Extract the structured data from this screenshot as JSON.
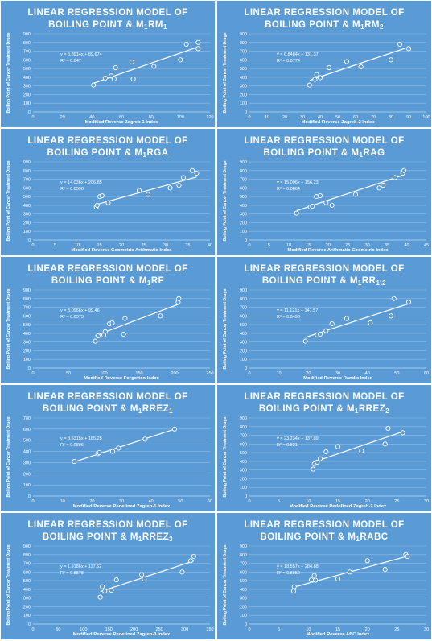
{
  "charts": [
    {
      "title_line1": "LINEAR REGRESSION MODEL OF",
      "title_prefix": "BOILING POINT & M",
      "title_sub1": "1",
      "title_mid": "RM",
      "title_sub2": "1",
      "equation": "y = 5.8914x + 89.674",
      "r2": "R² = 0.847"
    },
    {
      "title_line1": "LINEAR REGRESSION MODEL OF",
      "title_prefix": "BOILING POINT & M",
      "title_sub1": "1",
      "title_mid": "RM",
      "title_sub2": "2",
      "equation": "y = 6.8484x + 131.37",
      "r2": "R² = 0.8774"
    },
    {
      "title_line1": "LINEAR REGRESSION MODEL OF",
      "title_prefix": "BOILING POINT & M",
      "title_sub1": "1",
      "title_mid": "RGA",
      "title_sub2": "",
      "equation": "y = 14.036x + 206.85",
      "r2": "R² = 0.8598"
    },
    {
      "title_line1": "LINEAR REGRESSION MODEL OF",
      "title_prefix": "BOILING POINT & M",
      "title_sub1": "1",
      "title_mid": "RAG",
      "title_sub2": "",
      "equation": "y = 15.096x + 156.23",
      "r2": "R² = 0.8864"
    },
    {
      "title_line1": "LINEAR REGRESSION MODEL OF",
      "title_prefix": "BOILING POINT & M",
      "title_sub1": "1",
      "title_mid": "RF",
      "title_sub2": "",
      "equation": "y = 3.0966x + 99.46",
      "r2": "R² = 0.8373"
    },
    {
      "title_line1": "LINEAR REGRESSION MODEL OF",
      "title_prefix": "BOILING POINT & M",
      "title_sub1": "1",
      "title_mid": "RR",
      "title_sub2": "1\\2",
      "equation": "y = 11.121x + 141.57",
      "r2": "R² = 0.8493"
    },
    {
      "title_line1": "LINEAR REGRESSION MODEL OF",
      "title_prefix": "BOILING POINT & M",
      "title_sub1": "1",
      "title_mid": "RREZ",
      "title_sub2": "1",
      "equation": "y = 8.6315x + 185.25",
      "r2": "R² = 0.9806"
    },
    {
      "title_line1": "LINEAR REGRESSION MODEL OF",
      "title_prefix": "BOILING POINT & M",
      "title_sub1": "1",
      "title_mid": "RREZ",
      "title_sub2": "2",
      "equation": "y = 23.234x + 137.89",
      "r2": "R² = 0.821"
    },
    {
      "title_line1": "LINEAR REGRESSION MODEL OF",
      "title_prefix": "BOILING POINT & M",
      "title_sub1": "1",
      "title_mid": "RREZ",
      "title_sub2": "3",
      "equation": "y = 1.9186x + 117.62",
      "r2": "R² = 0.8878"
    },
    {
      "title_line1": "LINEAR REGRESSION MODEL OF",
      "title_prefix": "BOILING POINT & M",
      "title_sub1": "1",
      "title_mid": "RABC",
      "title_sub2": "",
      "equation": "y = 18.557x + 284.88",
      "r2": "R² = 0.8852"
    }
  ],
  "colors": {
    "panel_bg": "#5b9bd5",
    "foreground": "#ffffff"
  },
  "chart_data": [
    {
      "type": "scatter",
      "title": "LINEAR REGRESSION MODEL OF BOILING POINT & M1RM1",
      "xlabel": "Modified Reverse Zagreb-1 Index",
      "ylabel": "Boiling Point of Cancer Treatment Drugs",
      "xlim": [
        0,
        120
      ],
      "ylim": [
        0,
        900
      ],
      "xticks": [
        0,
        20,
        40,
        60,
        80,
        100,
        120
      ],
      "yticks": [
        0,
        100,
        200,
        300,
        400,
        500,
        600,
        700,
        800,
        900
      ],
      "x": [
        41,
        49,
        53,
        55,
        56,
        67,
        68,
        82,
        100,
        104,
        112,
        112
      ],
      "y": [
        310,
        390,
        415,
        380,
        510,
        575,
        380,
        525,
        600,
        780,
        800,
        730
      ],
      "trendline": {
        "slope": 5.8914,
        "intercept": 89.674
      }
    },
    {
      "type": "scatter",
      "title": "LINEAR REGRESSION MODEL OF BOILING POINT & M1RM2",
      "xlabel": "Modified Reverse Zagreb-2 Index",
      "ylabel": "Boiling Point of Cancer Treatment Drugs",
      "xlim": [
        0,
        100
      ],
      "ylim": [
        0,
        900
      ],
      "xticks": [
        0,
        10,
        20,
        30,
        40,
        50,
        60,
        70,
        80,
        90,
        100
      ],
      "yticks": [
        0,
        100,
        200,
        300,
        400,
        500,
        600,
        700,
        800,
        900
      ],
      "x": [
        34,
        37,
        38,
        40,
        45,
        55,
        63,
        80,
        85,
        90
      ],
      "y": [
        310,
        375,
        430,
        395,
        510,
        580,
        520,
        600,
        780,
        730
      ],
      "trendline": {
        "slope": 6.8484,
        "intercept": 131.37
      }
    },
    {
      "type": "scatter",
      "title": "LINEAR REGRESSION MODEL OF BOILING POINT & M1RGA",
      "xlabel": "Modified Reverse Geometric Arithmatic Index",
      "ylabel": "Boiling Point of Cancer Treatment Drugs",
      "xlim": [
        0,
        40
      ],
      "ylim": [
        0,
        900
      ],
      "xticks": [
        0,
        5,
        10,
        15,
        20,
        25,
        30,
        35,
        40
      ],
      "yticks": [
        0,
        100,
        200,
        300,
        400,
        500,
        600,
        700,
        800,
        900
      ],
      "x": [
        14.3,
        14.5,
        15.1,
        15.6,
        17,
        24,
        26,
        31,
        33,
        34,
        36,
        37
      ],
      "y": [
        380,
        400,
        500,
        510,
        430,
        570,
        525,
        600,
        630,
        720,
        800,
        770
      ],
      "trendline": {
        "slope": 14.036,
        "intercept": 206.85
      }
    },
    {
      "type": "scatter",
      "title": "LINEAR REGRESSION MODEL OF BOILING POINT & M1RAG",
      "xlabel": "Modified Reverse  Arithmatic Geometric Index",
      "ylabel": "Boiling Point of Cancer Treatment Drugs",
      "xlim": [
        0,
        45
      ],
      "ylim": [
        0,
        900
      ],
      "xticks": [
        0,
        5,
        10,
        15,
        20,
        25,
        30,
        35,
        40,
        45
      ],
      "yticks": [
        0,
        100,
        200,
        300,
        400,
        500,
        600,
        700,
        800,
        900
      ],
      "x": [
        12,
        15.5,
        16,
        17,
        18,
        19.5,
        21,
        27,
        33,
        34,
        37,
        39,
        39.3
      ],
      "y": [
        310,
        380,
        390,
        500,
        510,
        430,
        400,
        525,
        600,
        630,
        720,
        770,
        800
      ],
      "trendline": {
        "slope": 15.096,
        "intercept": 156.23
      }
    },
    {
      "type": "scatter",
      "title": "LINEAR REGRESSION MODEL OF BOILING POINT & M1RF",
      "xlabel": "Modified Reverse Forgotton Index",
      "ylabel": "Boiling Point of Cancer Treatment Drugs",
      "xlim": [
        0,
        250
      ],
      "ylim": [
        0,
        900
      ],
      "xticks": [
        0,
        50,
        100,
        150,
        200,
        250
      ],
      "yticks": [
        0,
        100,
        200,
        300,
        400,
        500,
        600,
        700,
        800,
        900
      ],
      "x": [
        88,
        92,
        100,
        102,
        108,
        112,
        128,
        130,
        180,
        205,
        206
      ],
      "y": [
        310,
        370,
        380,
        420,
        510,
        520,
        390,
        570,
        600,
        760,
        800
      ],
      "trendline": {
        "slope": 3.0966,
        "intercept": 99.46
      }
    },
    {
      "type": "scatter",
      "title": "LINEAR REGRESSION MODEL OF BOILING POINT & M1RR1\\2",
      "xlabel": "Modified Reverse Randic Index",
      "ylabel": "Boiling Point of Cancer Treatment Drugs",
      "xlim": [
        0,
        60
      ],
      "ylim": [
        0,
        900
      ],
      "xticks": [
        0,
        10,
        20,
        30,
        40,
        50,
        60
      ],
      "yticks": [
        0,
        100,
        200,
        300,
        400,
        500,
        600,
        700,
        800,
        900
      ],
      "x": [
        19,
        23,
        24,
        26,
        28,
        33,
        41,
        48,
        49,
        54
      ],
      "y": [
        310,
        380,
        390,
        430,
        510,
        570,
        520,
        600,
        800,
        760
      ],
      "trendline": {
        "slope": 11.121,
        "intercept": 141.57
      }
    },
    {
      "type": "scatter",
      "title": "LINEAR REGRESSION MODEL OF BOILING POINT & M1RREZ1",
      "xlabel": "Modified Reverse Redefined Zagreb-1 Index",
      "ylabel": "Boiling Point of Cancer Treatment Drugs",
      "xlim": [
        0,
        60
      ],
      "ylim": [
        0,
        700
      ],
      "xticks": [
        0,
        10,
        20,
        30,
        40,
        50,
        60
      ],
      "yticks": [
        0,
        100,
        200,
        300,
        400,
        500,
        600,
        700
      ],
      "x": [
        14,
        22,
        22.5,
        27,
        29,
        38,
        48
      ],
      "y": [
        310,
        380,
        390,
        400,
        430,
        510,
        600
      ],
      "trendline": {
        "slope": 8.6315,
        "intercept": 185.25
      }
    },
    {
      "type": "scatter",
      "title": "LINEAR REGRESSION MODEL OF BOILING POINT & M1RREZ2",
      "xlabel": "Modified Reverse Redefined Zagreb-2 Index",
      "ylabel": "Boiling Point of Cancer Treatment Drugs",
      "xlim": [
        0,
        30
      ],
      "ylim": [
        0,
        900
      ],
      "xticks": [
        0,
        5,
        10,
        15,
        20,
        25,
        30
      ],
      "yticks": [
        0,
        100,
        200,
        300,
        400,
        500,
        600,
        700,
        800,
        900
      ],
      "x": [
        10.8,
        11,
        11.5,
        12,
        13,
        15,
        19,
        23,
        23.5,
        26
      ],
      "y": [
        310,
        370,
        390,
        430,
        510,
        570,
        520,
        600,
        780,
        730
      ],
      "trendline": {
        "slope": 23.234,
        "intercept": 137.89
      }
    },
    {
      "type": "scatter",
      "title": "LINEAR REGRESSION MODEL OF BOILING POINT & M1RREZ3",
      "xlabel": "Modified Reverse Redefined Zagreb-3 Index",
      "ylabel": "Boiling Point of Cancer Treatment Drugs",
      "xlim": [
        0,
        350
      ],
      "ylim": [
        0,
        900
      ],
      "xticks": [
        0,
        50,
        100,
        150,
        200,
        250,
        300,
        350
      ],
      "yticks": [
        0,
        100,
        200,
        300,
        400,
        500,
        600,
        700,
        800,
        900
      ],
      "x": [
        133,
        137,
        142,
        155,
        165,
        215,
        220,
        295,
        312,
        318
      ],
      "y": [
        310,
        430,
        380,
        390,
        510,
        570,
        520,
        600,
        730,
        780
      ],
      "trendline": {
        "slope": 1.9186,
        "intercept": 117.62
      }
    },
    {
      "type": "scatter",
      "title": "LINEAR REGRESSION MODEL OF BOILING POINT & M1RABC",
      "xlabel": "Modified Reverse ABC Index",
      "ylabel": "Boiling Point of Cancer Treatment Drugs",
      "xlim": [
        0,
        30
      ],
      "ylim": [
        0,
        900
      ],
      "xticks": [
        0,
        5,
        10,
        15,
        20,
        25,
        30
      ],
      "yticks": [
        0,
        100,
        200,
        300,
        400,
        500,
        600,
        700,
        800,
        900
      ],
      "x": [
        7.5,
        7.6,
        10.5,
        11,
        11.2,
        15,
        17,
        20,
        23,
        26.5,
        26.8
      ],
      "y": [
        380,
        430,
        510,
        560,
        505,
        520,
        600,
        730,
        630,
        800,
        780
      ],
      "trendline": {
        "slope": 18.557,
        "intercept": 284.88
      }
    }
  ]
}
